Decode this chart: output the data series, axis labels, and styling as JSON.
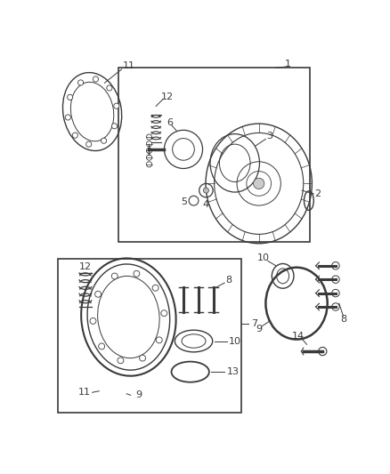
{
  "bg_color": "#ffffff",
  "line_color": "#3a3a3a",
  "fig_width": 4.38,
  "fig_height": 5.33,
  "dpi": 100
}
